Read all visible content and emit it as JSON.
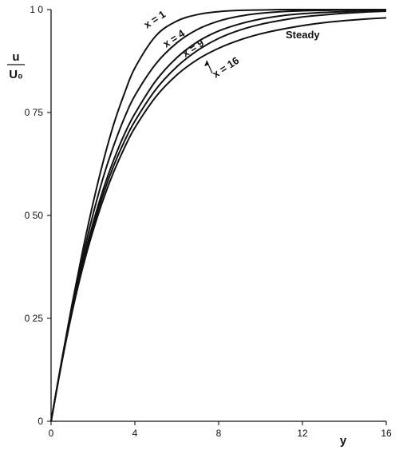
{
  "chart_data": {
    "type": "line",
    "title": "",
    "xlabel": "y",
    "ylabel_numerator": "u",
    "ylabel_denominator": "U₀",
    "xlim": [
      0,
      16
    ],
    "ylim": [
      0,
      1
    ],
    "x_ticks": [
      0,
      4,
      8,
      12,
      16
    ],
    "x_tick_labels": [
      "0",
      "4",
      "8",
      "12",
      "16"
    ],
    "y_ticks": [
      0,
      0.25,
      0.5,
      0.75,
      1.0
    ],
    "y_tick_labels": [
      "0",
      "0 25",
      "0 50",
      "0 75",
      "1 0"
    ],
    "grid": false,
    "legend": "none",
    "x": [
      0,
      0.5,
      1,
      1.5,
      2,
      2.5,
      3,
      3.5,
      4,
      5,
      6,
      7,
      8,
      9,
      10,
      11,
      12,
      13,
      14,
      15,
      16
    ],
    "series": [
      {
        "name": "x = 1",
        "values": [
          0,
          0.146,
          0.284,
          0.412,
          0.529,
          0.633,
          0.723,
          0.796,
          0.858,
          0.936,
          0.972,
          0.988,
          0.995,
          0.998,
          0.999,
          1.0,
          1.0,
          1.0,
          1.0,
          1.0,
          1.0
        ]
      },
      {
        "name": "x = 4",
        "values": [
          0,
          0.143,
          0.276,
          0.396,
          0.502,
          0.594,
          0.671,
          0.737,
          0.791,
          0.868,
          0.919,
          0.952,
          0.972,
          0.984,
          0.991,
          0.995,
          0.997,
          0.998,
          0.999,
          1.0,
          1.0
        ]
      },
      {
        "name": "x = 9",
        "values": [
          0,
          0.142,
          0.27,
          0.383,
          0.481,
          0.565,
          0.636,
          0.697,
          0.747,
          0.827,
          0.883,
          0.922,
          0.948,
          0.965,
          0.977,
          0.985,
          0.99,
          0.993,
          0.995,
          0.997,
          0.998
        ]
      },
      {
        "name": "x = 16",
        "values": [
          0,
          0.141,
          0.267,
          0.377,
          0.472,
          0.553,
          0.622,
          0.68,
          0.729,
          0.806,
          0.861,
          0.901,
          0.93,
          0.95,
          0.964,
          0.974,
          0.982,
          0.987,
          0.991,
          0.994,
          0.996
        ]
      },
      {
        "name": "Steady",
        "values": [
          0,
          0.14,
          0.264,
          0.371,
          0.462,
          0.54,
          0.607,
          0.664,
          0.713,
          0.788,
          0.841,
          0.879,
          0.906,
          0.926,
          0.941,
          0.952,
          0.961,
          0.968,
          0.973,
          0.977,
          0.98
        ]
      }
    ],
    "annotations": [
      {
        "text": "x = 1",
        "series": "x = 1"
      },
      {
        "text": "x = 4",
        "series": "x = 4"
      },
      {
        "text": "x = 9",
        "series": "x = 9"
      },
      {
        "text": "x = 16",
        "series": "x = 16"
      },
      {
        "text": "Steady",
        "series": "Steady"
      }
    ]
  }
}
